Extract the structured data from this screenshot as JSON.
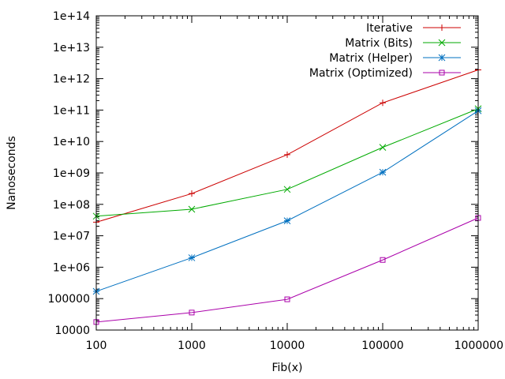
{
  "chart_data": {
    "type": "line",
    "xlabel": "Fib(x)",
    "ylabel": "Nanoseconds",
    "x_scale": "log",
    "y_scale": "log",
    "xlim": [
      100,
      1000000
    ],
    "ylim": [
      10000,
      100000000000000
    ],
    "x_ticks": [
      100,
      1000,
      10000,
      100000,
      1000000
    ],
    "x_tick_labels": [
      "100",
      "1000",
      "10000",
      "100000",
      "1000000"
    ],
    "y_ticks": [
      10000,
      100000,
      1000000,
      10000000,
      100000000,
      1000000000,
      10000000000,
      100000000000,
      1000000000000,
      10000000000000,
      100000000000000
    ],
    "y_tick_labels": [
      "10000",
      "100000",
      "1e+06",
      "1e+07",
      "1e+08",
      "1e+09",
      "1e+10",
      "1e+11",
      "1e+12",
      "1e+13",
      "1e+14"
    ],
    "grid": false,
    "legend_position": "top-right",
    "x": [
      100,
      1000,
      10000,
      100000,
      1000000
    ],
    "series": [
      {
        "name": "Iterative",
        "color": "#cc0000",
        "marker": "plus",
        "values": [
          27000000,
          220000000,
          3800000000,
          170000000000,
          1900000000000
        ]
      },
      {
        "name": "Matrix (Bits)",
        "color": "#00aa00",
        "marker": "cross",
        "values": [
          42000000,
          70000000,
          300000000,
          6500000000,
          110000000000
        ]
      },
      {
        "name": "Matrix (Helper)",
        "color": "#0070c0",
        "marker": "star",
        "values": [
          170000,
          2000000,
          30000000,
          1050000000,
          95000000000
        ]
      },
      {
        "name": "Matrix (Optimized)",
        "color": "#aa00aa",
        "marker": "square",
        "values": [
          18000,
          36000,
          95000,
          1700000,
          37000000
        ]
      }
    ]
  }
}
